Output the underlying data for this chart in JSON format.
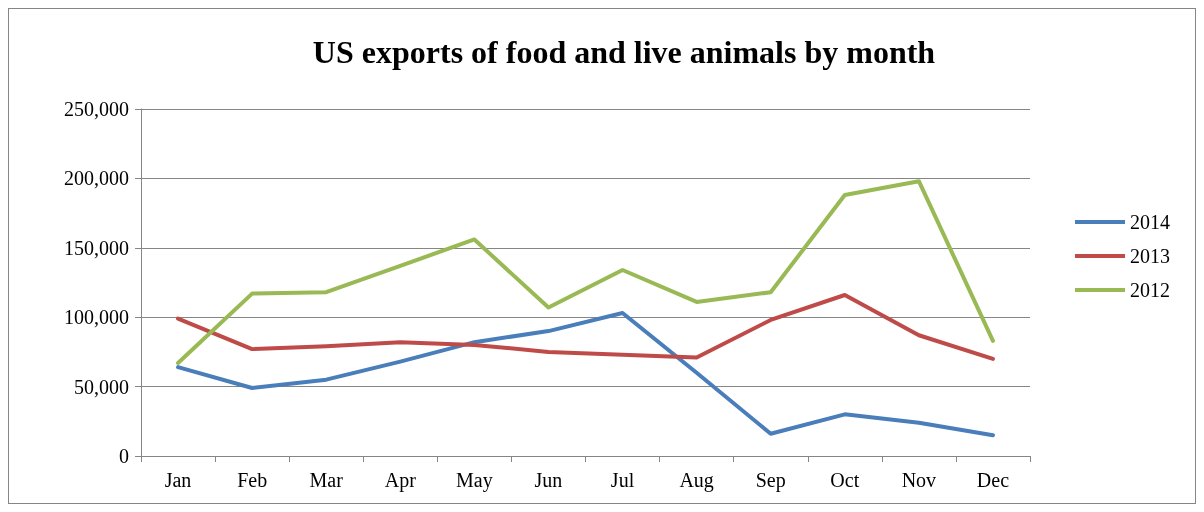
{
  "chart_data": {
    "type": "line",
    "title": "US exports of food and live animals by month",
    "categories": [
      "Jan",
      "Feb",
      "Mar",
      "Apr",
      "May",
      "Jun",
      "Jul",
      "Aug",
      "Sep",
      "Oct",
      "Nov",
      "Dec"
    ],
    "series": [
      {
        "name": "2014",
        "color": "#4a7ebb",
        "values": [
          64000,
          49000,
          55000,
          68000,
          82000,
          90000,
          103000,
          60000,
          16000,
          30000,
          24000,
          15000
        ]
      },
      {
        "name": "2013",
        "color": "#be4b48",
        "values": [
          99000,
          77000,
          79000,
          82000,
          80000,
          75000,
          73000,
          71000,
          98000,
          116000,
          87000,
          70000
        ]
      },
      {
        "name": "2012",
        "color": "#98b954",
        "values": [
          67000,
          117000,
          118000,
          137000,
          156000,
          107000,
          134000,
          111000,
          118000,
          188000,
          198000,
          83000
        ]
      }
    ],
    "ylim": [
      0,
      250000
    ],
    "yticks": [
      0,
      {
        "value": 50000,
        "label": "50,000"
      },
      {
        "value": 100000,
        "label": "100,000"
      },
      {
        "value": 150000,
        "label": "150,000"
      },
      {
        "value": 200000,
        "label": "200,000"
      },
      {
        "value": 250000,
        "label": "250,000"
      }
    ],
    "grid": "y",
    "legend": "right",
    "marker": "none",
    "line_style": "solid"
  }
}
